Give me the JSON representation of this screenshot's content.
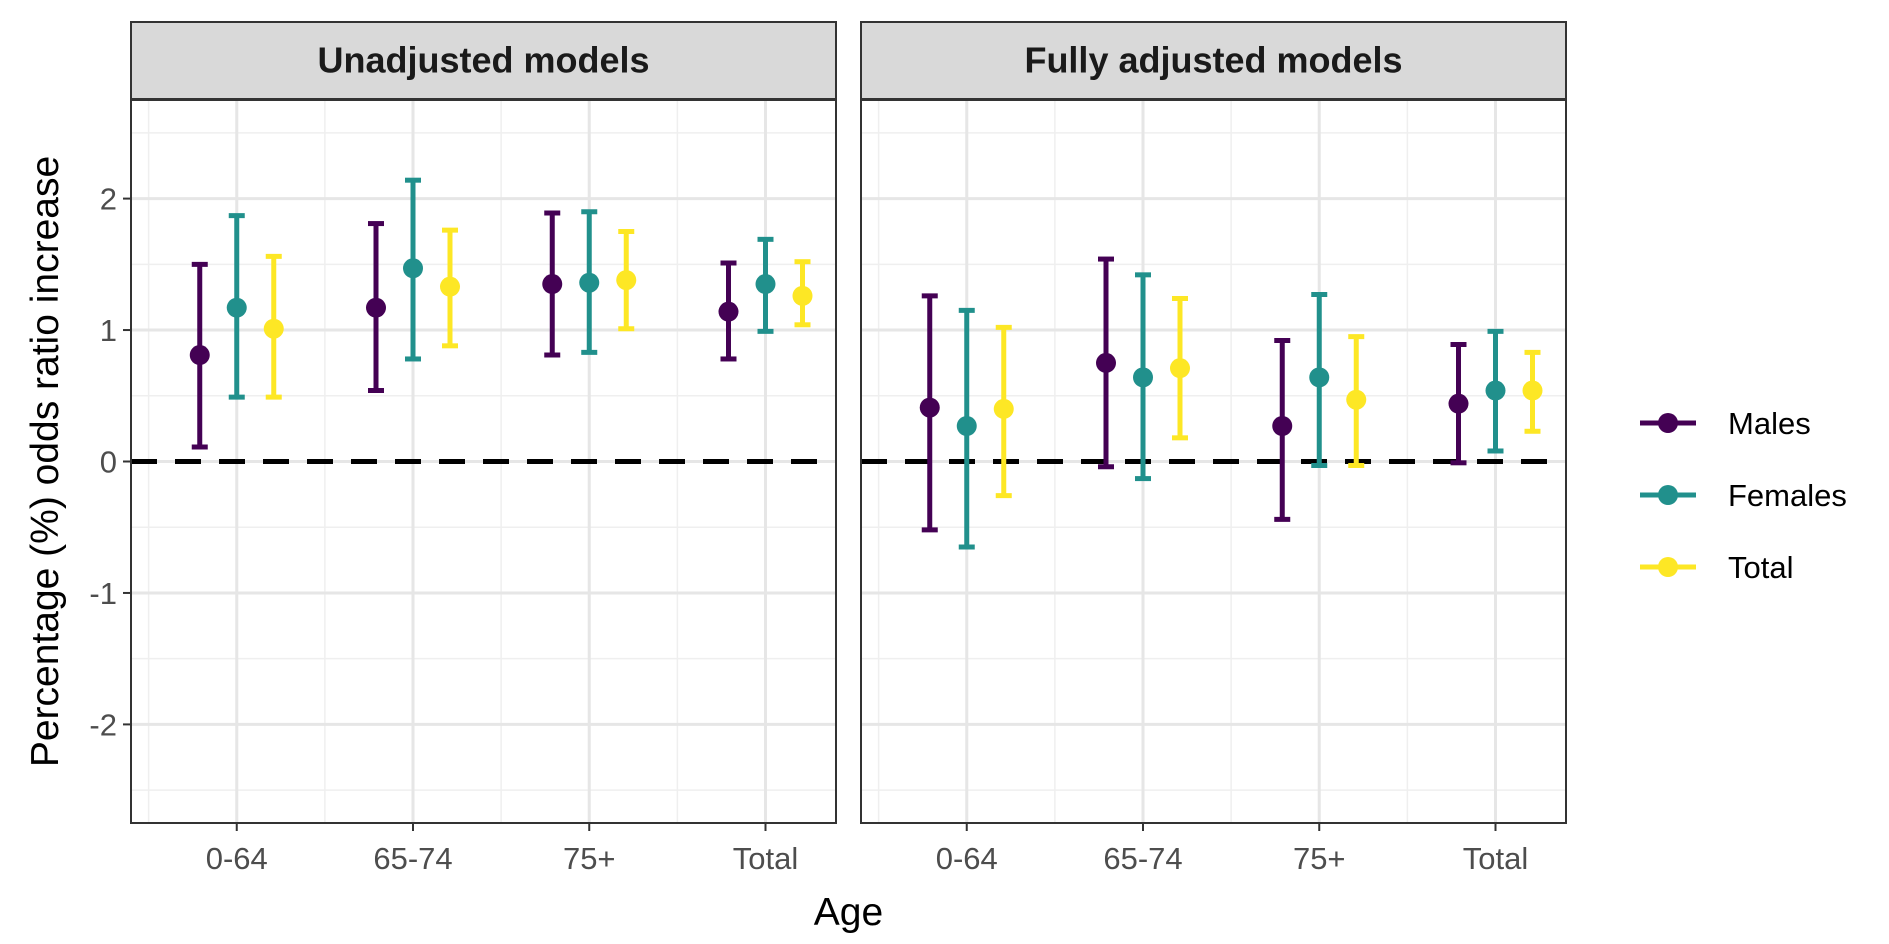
{
  "chart_data": {
    "type": "errorbar",
    "xlabel": "Age",
    "ylabel": "Percentage (%) odds ratio increase",
    "categories": [
      "0-64",
      "65-74",
      "75+",
      "Total"
    ],
    "ylim": [
      -2.75,
      2.75
    ],
    "yticks": [
      -2,
      -1,
      0,
      1,
      2
    ],
    "yticks_labels": [
      "-2",
      "-1",
      "0",
      "1",
      "2"
    ],
    "reference_line": {
      "y": 0,
      "style": "dashed",
      "color": "#000000"
    },
    "grid": true,
    "legend_position": "right",
    "series": [
      {
        "name": "Males",
        "color": "#440154"
      },
      {
        "name": "Females",
        "color": "#21908C"
      },
      {
        "name": "Total",
        "color": "#FDE725"
      }
    ],
    "panels": [
      {
        "title": "Unadjusted models",
        "data": {
          "Males": [
            {
              "est": 0.81,
              "lo": 0.11,
              "hi": 1.5
            },
            {
              "est": 1.17,
              "lo": 0.54,
              "hi": 1.81
            },
            {
              "est": 1.35,
              "lo": 0.81,
              "hi": 1.89
            },
            {
              "est": 1.14,
              "lo": 0.78,
              "hi": 1.51
            }
          ],
          "Females": [
            {
              "est": 1.17,
              "lo": 0.49,
              "hi": 1.87
            },
            {
              "est": 1.47,
              "lo": 0.78,
              "hi": 2.14
            },
            {
              "est": 1.36,
              "lo": 0.83,
              "hi": 1.9
            },
            {
              "est": 1.35,
              "lo": 0.99,
              "hi": 1.69
            }
          ],
          "Total": [
            {
              "est": 1.01,
              "lo": 0.49,
              "hi": 1.56
            },
            {
              "est": 1.33,
              "lo": 0.88,
              "hi": 1.76
            },
            {
              "est": 1.38,
              "lo": 1.01,
              "hi": 1.75
            },
            {
              "est": 1.26,
              "lo": 1.04,
              "hi": 1.52
            }
          ]
        }
      },
      {
        "title": "Fully adjusted models",
        "data": {
          "Males": [
            {
              "est": 0.41,
              "lo": -0.52,
              "hi": 1.26
            },
            {
              "est": 0.75,
              "lo": -0.04,
              "hi": 1.54
            },
            {
              "est": 0.27,
              "lo": -0.44,
              "hi": 0.92
            },
            {
              "est": 0.44,
              "lo": -0.01,
              "hi": 0.89
            }
          ],
          "Females": [
            {
              "est": 0.27,
              "lo": -0.65,
              "hi": 1.15
            },
            {
              "est": 0.64,
              "lo": -0.13,
              "hi": 1.42
            },
            {
              "est": 0.64,
              "lo": -0.03,
              "hi": 1.27
            },
            {
              "est": 0.54,
              "lo": 0.08,
              "hi": 0.99
            }
          ],
          "Total": [
            {
              "est": 0.4,
              "lo": -0.26,
              "hi": 1.02
            },
            {
              "est": 0.71,
              "lo": 0.18,
              "hi": 1.24
            },
            {
              "est": 0.47,
              "lo": -0.03,
              "hi": 0.95
            },
            {
              "est": 0.54,
              "lo": 0.23,
              "hi": 0.83
            }
          ]
        }
      }
    ]
  }
}
